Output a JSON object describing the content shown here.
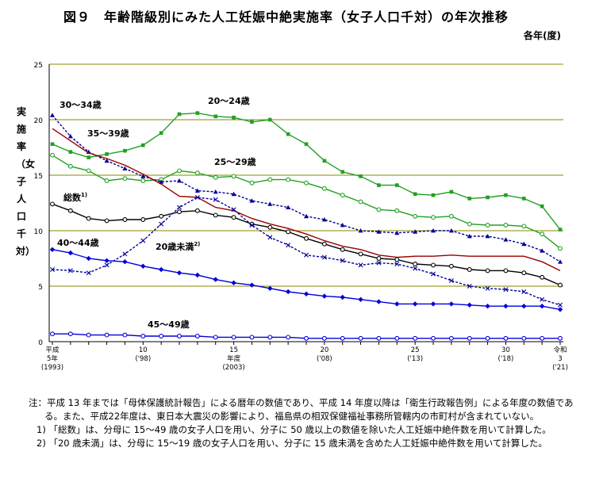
{
  "title": "図９　年齢階級別にみた人工妊娠中絶実施率（女子人口千対）の年次推移",
  "unit": "各年(度)",
  "ylabel": "実施率（女子人口千対）",
  "notes": {
    "main": "注：平成 13 年までは「母体保護統計報告」による暦年の数値であり、平成 14 年度以降は「衛生行政報告例」による年度の数値である。また、平成22年度は、東日本大震災の影響により、福島県の相双保健福祉事務所管轄内の市町村が含まれていない。",
    "n1": "1) 「総数」は、分母に 15～49 歳の女子人口を用い、分子に 50 歳以上の数値を除いた人工妊娠中絶件数を用いて計算した。",
    "n2": "2) 「20 歳未満」は、分母に 15～19 歳の女子人口を用い、分子に 15 歳未満を含めた人工妊娠中絶件数を用いて計算した。"
  },
  "chart_data": {
    "type": "line",
    "x": [
      1993,
      1994,
      1995,
      1996,
      1997,
      1998,
      1999,
      2000,
      2001,
      2002,
      2003,
      2004,
      2005,
      2006,
      2007,
      2008,
      2009,
      2010,
      2011,
      2012,
      2013,
      2014,
      2015,
      2016,
      2017,
      2018,
      2019,
      2020,
      2021
    ],
    "ylim": [
      0,
      25
    ],
    "yticks": [
      "0",
      "5",
      "10",
      "15",
      "20",
      "25"
    ],
    "xticks": [
      {
        "x": 1993,
        "lines": [
          "平成",
          "5年",
          "(1993)"
        ]
      },
      {
        "x": 1998,
        "lines": [
          "10",
          "('98)"
        ]
      },
      {
        "x": 2003,
        "lines": [
          "15",
          "年度",
          "(2003)"
        ]
      },
      {
        "x": 2008,
        "lines": [
          "20",
          "('08)"
        ]
      },
      {
        "x": 2013,
        "lines": [
          "25",
          "('13)"
        ]
      },
      {
        "x": 2018,
        "lines": [
          "30",
          "('18)"
        ]
      },
      {
        "x": 2021,
        "lines": [
          "令和",
          "3",
          "('21)"
        ]
      }
    ],
    "grid": true,
    "series": [
      {
        "name": "20～24歳",
        "color": "#22a022",
        "marker": "square-filled",
        "dash": false,
        "values": [
          17.8,
          17.1,
          16.6,
          16.9,
          17.2,
          17.7,
          18.8,
          20.5,
          20.6,
          20.3,
          20.2,
          19.8,
          20.0,
          18.7,
          17.8,
          16.3,
          15.3,
          14.9,
          14.1,
          14.1,
          13.3,
          13.2,
          13.5,
          12.9,
          13.0,
          13.2,
          12.9,
          12.2,
          10.1
        ]
      },
      {
        "name": "25～29歳",
        "color": "#22a022",
        "marker": "circle-open",
        "dash": false,
        "values": [
          16.8,
          15.8,
          15.4,
          14.5,
          14.7,
          14.5,
          14.6,
          15.4,
          15.2,
          14.8,
          14.9,
          14.3,
          14.6,
          14.6,
          14.3,
          13.8,
          13.2,
          12.6,
          11.9,
          11.8,
          11.3,
          11.2,
          11.3,
          10.6,
          10.5,
          10.5,
          10.4,
          9.7,
          8.4
        ]
      },
      {
        "name": "30～34歳",
        "color": "#000099",
        "marker": "triangle-filled",
        "dash": true,
        "values": [
          20.4,
          18.5,
          17.1,
          16.3,
          15.6,
          14.9,
          14.4,
          14.5,
          13.6,
          13.5,
          13.3,
          12.7,
          12.4,
          12.1,
          11.3,
          11.0,
          10.5,
          10.0,
          9.9,
          9.8,
          9.9,
          10.0,
          10.0,
          9.5,
          9.5,
          9.2,
          8.8,
          8.2,
          7.2
        ]
      },
      {
        "name": "35～39歳",
        "color": "#990000",
        "marker": "none",
        "dash": false,
        "values": [
          19.2,
          18.1,
          17.0,
          16.5,
          15.9,
          15.1,
          14.2,
          13.1,
          13.0,
          12.1,
          11.8,
          11.1,
          10.6,
          10.2,
          9.7,
          9.1,
          8.6,
          8.3,
          7.8,
          7.6,
          7.7,
          7.7,
          7.8,
          7.7,
          7.7,
          7.7,
          7.7,
          7.2,
          6.4
        ]
      },
      {
        "name": "総数",
        "color": "#000000",
        "marker": "circle-open",
        "dash": false,
        "values": [
          12.4,
          11.8,
          11.1,
          10.9,
          11.0,
          11.0,
          11.3,
          11.7,
          11.8,
          11.4,
          11.2,
          10.6,
          10.3,
          9.9,
          9.3,
          8.8,
          8.3,
          7.9,
          7.5,
          7.4,
          7.0,
          6.9,
          6.8,
          6.5,
          6.4,
          6.4,
          6.2,
          5.8,
          5.1
        ]
      },
      {
        "name": "20歳未満",
        "color": "#000099",
        "marker": "x",
        "dash": true,
        "values": [
          6.5,
          6.4,
          6.2,
          6.9,
          7.9,
          9.1,
          10.6,
          12.1,
          13.0,
          12.8,
          11.9,
          10.5,
          9.4,
          8.7,
          7.8,
          7.6,
          7.3,
          6.9,
          7.1,
          7.0,
          6.6,
          6.1,
          5.5,
          5.0,
          4.8,
          4.7,
          4.5,
          3.8,
          3.3
        ]
      },
      {
        "name": "40～44歳",
        "color": "#0000dd",
        "marker": "diamond-filled",
        "dash": false,
        "values": [
          8.3,
          8.0,
          7.5,
          7.3,
          7.2,
          6.8,
          6.5,
          6.2,
          6.0,
          5.6,
          5.3,
          5.1,
          4.8,
          4.5,
          4.3,
          4.1,
          4.0,
          3.8,
          3.6,
          3.4,
          3.4,
          3.4,
          3.4,
          3.3,
          3.2,
          3.2,
          3.2,
          3.2,
          2.9
        ]
      },
      {
        "name": "45～49歳",
        "color": "#0000dd",
        "marker": "circle-open",
        "dash": false,
        "values": [
          0.7,
          0.7,
          0.6,
          0.6,
          0.6,
          0.5,
          0.5,
          0.5,
          0.5,
          0.4,
          0.4,
          0.4,
          0.4,
          0.4,
          0.3,
          0.3,
          0.3,
          0.3,
          0.3,
          0.3,
          0.3,
          0.3,
          0.3,
          0.3,
          0.3,
          0.3,
          0.3,
          0.3,
          0.3
        ]
      }
    ],
    "labels": [
      {
        "text": "30～34歳",
        "series": 2
      },
      {
        "text": "35～39歳",
        "series": 3
      },
      {
        "text": "20～24歳",
        "series": 0
      },
      {
        "text": "25～29歳",
        "series": 1
      },
      {
        "text": "総数",
        "sup": "1)",
        "series": 4
      },
      {
        "text": "40～44歳",
        "series": 6
      },
      {
        "text": "20歳未満",
        "sup": "2)",
        "series": 5
      },
      {
        "text": "45～49歳",
        "series": 7
      }
    ]
  }
}
